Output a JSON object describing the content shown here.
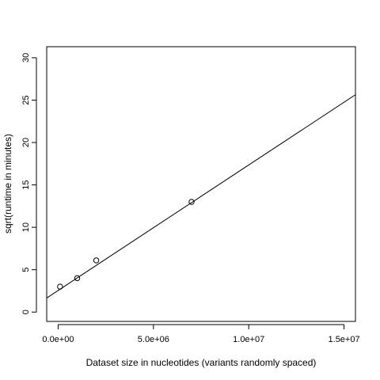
{
  "chart_data": {
    "type": "scatter",
    "title": "",
    "xlabel": "Dataset size in nucleotides (variants randomly spaced)",
    "ylabel": "sqrt(runtime in minutes)",
    "xlim": [
      -600000,
      15600000
    ],
    "ylim": [
      -1.1,
      31.3
    ],
    "x_ticks": [
      0,
      5000000,
      10000000,
      15000000
    ],
    "x_tick_labels": [
      "0.0e+00",
      "5.0e+06",
      "1.0e+07",
      "1.5e+07"
    ],
    "y_ticks": [
      0,
      5,
      10,
      15,
      20,
      25,
      30
    ],
    "y_tick_labels": [
      "0",
      "5",
      "10",
      "15",
      "20",
      "25",
      "30"
    ],
    "points": [
      {
        "x": 100000,
        "y": 3.0
      },
      {
        "x": 1000000,
        "y": 4.0
      },
      {
        "x": 2000000,
        "y": 6.1
      },
      {
        "x": 7000000,
        "y": 13.0
      }
    ],
    "fit_line": {
      "intercept": 2.55,
      "slope": 1.48e-06
    },
    "grid": false,
    "legend": "none"
  }
}
